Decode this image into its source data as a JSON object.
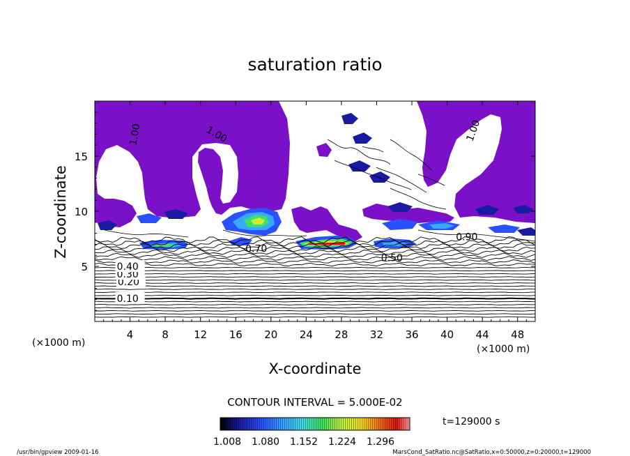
{
  "chart_data": {
    "type": "heatmap",
    "title": "saturation ratio",
    "xlabel": "X-coordinate",
    "ylabel": "Z-coordinate",
    "x_unit_left": "(×1000 m)",
    "x_unit_right": "(×1000 m)",
    "xlim": [
      0,
      50
    ],
    "ylim": [
      0,
      20
    ],
    "xticks": [
      4,
      8,
      12,
      16,
      20,
      24,
      28,
      32,
      36,
      40,
      44,
      48
    ],
    "yticks": [
      5,
      10,
      15
    ],
    "contour_interval_text": "CONTOUR INTERVAL = 5.000E-02",
    "time_text": "t=129000 s",
    "colorbar": {
      "ticks": [
        "1.008",
        "1.080",
        "1.152",
        "1.224",
        "1.296"
      ],
      "colors": [
        "#000000",
        "#1a1aa0",
        "#2a50ff",
        "#3aa8ff",
        "#40e0e0",
        "#40e060",
        "#c0f040",
        "#f0e020",
        "#f07010",
        "#e01010",
        "#ffa0a0"
      ]
    },
    "fill_color_saturated": "#7a10c8",
    "contour_lines": [
      {
        "label": "0.10",
        "z": 2.1,
        "x": 2.5
      },
      {
        "label": "0.20",
        "z": 3.6,
        "x": 2.6
      },
      {
        "label": "0.30",
        "z": 4.3,
        "x": 2.5
      },
      {
        "label": "0.40",
        "z": 5.0,
        "x": 2.5
      },
      {
        "label": "0.50",
        "z": 5.8,
        "x": 32.5
      },
      {
        "label": "0.70",
        "z": 6.6,
        "x": 17.1
      },
      {
        "label": "0.90",
        "z": 7.7,
        "x": 41.0
      },
      {
        "label": "1.00",
        "z": 17.5,
        "x": 12.8
      },
      {
        "label": "1.00",
        "z": 16.0,
        "x": 4.3
      },
      {
        "label": "1.00",
        "z": 16.4,
        "x": 42.5
      }
    ]
  },
  "footer": {
    "left": "/usr/bin/gpview  2009-01-16",
    "right": "MarsCond_SatRatio.nc@SatRatio,x=0:50000,z=0:20000,t=129000"
  }
}
